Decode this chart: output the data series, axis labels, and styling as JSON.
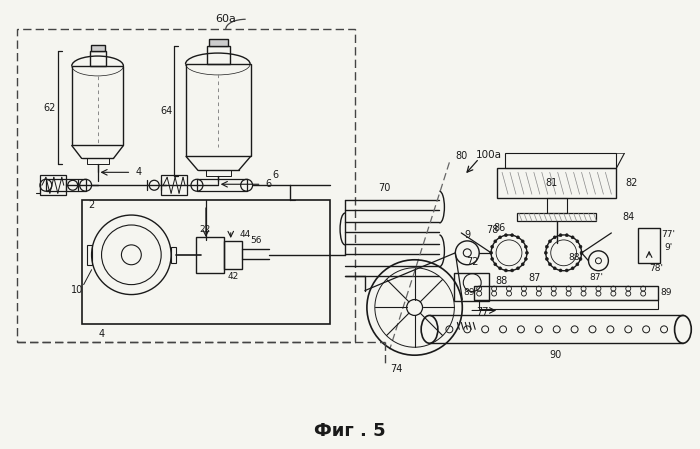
{
  "background_color": "#f5f5f0",
  "fig_width": 7.0,
  "fig_height": 4.49,
  "dpi": 100,
  "label_60a": "60a",
  "label_100a": "100a",
  "label_fig": "Фиг . 5",
  "line_color": "#1a1a1a",
  "dash_color": "#444444"
}
